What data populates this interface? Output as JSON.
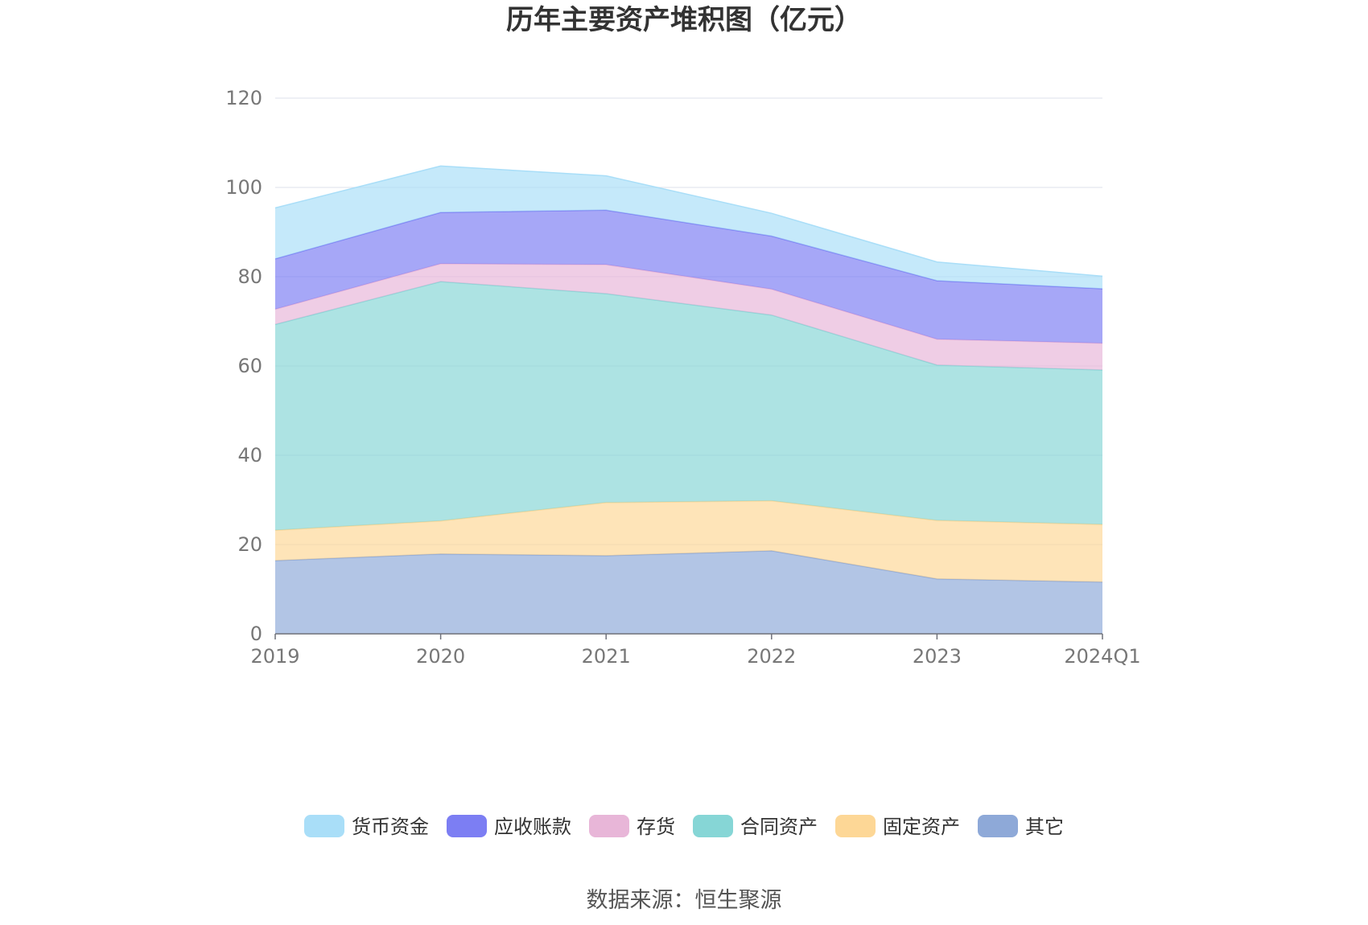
{
  "chart_data": {
    "type": "area",
    "stacked": true,
    "title": "历年主要资产堆积图（亿元）",
    "categories": [
      "2019",
      "2020",
      "2021",
      "2022",
      "2023",
      "2024Q1"
    ],
    "ylim": [
      0,
      120
    ],
    "yticks": [
      0,
      20,
      40,
      60,
      80,
      100,
      120
    ],
    "grid": true,
    "legend_position": "bottom",
    "series": [
      {
        "name": "其它",
        "color": "#8ea9d8",
        "values": [
          16.4,
          17.9,
          17.5,
          18.6,
          12.3,
          11.6
        ]
      },
      {
        "name": "固定资产",
        "color": "#fdd796",
        "values": [
          6.8,
          7.4,
          11.9,
          11.2,
          13.1,
          12.9
        ]
      },
      {
        "name": "合同资产",
        "color": "#86d6d6",
        "values": [
          46.1,
          53.6,
          46.8,
          41.6,
          34.8,
          34.6
        ]
      },
      {
        "name": "存货",
        "color": "#e8b6d8",
        "values": [
          3.4,
          4.0,
          6.5,
          5.8,
          5.8,
          6.0
        ]
      },
      {
        "name": "应收账款",
        "color": "#7c7ef3",
        "values": [
          11.3,
          11.5,
          12.2,
          11.9,
          13.1,
          12.2
        ]
      },
      {
        "name": "货币资金",
        "color": "#a9def8",
        "values": [
          11.4,
          10.4,
          7.7,
          5.1,
          4.2,
          2.8
        ]
      }
    ],
    "legend_order": [
      "货币资金",
      "应收账款",
      "存货",
      "合同资产",
      "固定资产",
      "其它"
    ]
  },
  "source": "数据来源：恒生聚源"
}
